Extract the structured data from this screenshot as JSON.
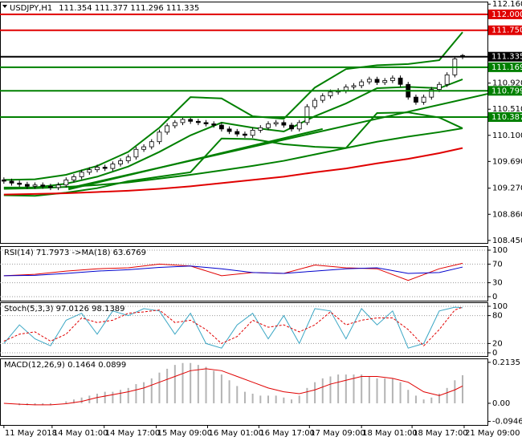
{
  "chart_data": [
    {
      "type": "candlestick",
      "title": "USDJPY,H1",
      "subtitle": "111.354 111.377 111.296 111.335",
      "xlim": [
        -0.5,
        62.2
      ],
      "ylim": [
        108.41,
        112.2
      ],
      "yticks": [
        {
          "value": 112.16,
          "label": "112.160"
        },
        {
          "value": 110.92,
          "label": "110.920"
        },
        {
          "value": 110.51,
          "label": "110.510"
        },
        {
          "value": 110.1,
          "label": "110.100"
        },
        {
          "value": 109.69,
          "label": "109.690"
        },
        {
          "value": 109.27,
          "label": "109.270"
        },
        {
          "value": 108.86,
          "label": "108.860"
        },
        {
          "value": 108.45,
          "label": "108.450"
        }
      ],
      "bull_color": "#ffffff",
      "bear_color": "#000000",
      "candle_color": "#000000",
      "open": [
        109.4,
        109.38,
        109.35,
        109.33,
        109.3,
        109.32,
        109.3,
        109.28,
        109.32,
        109.4,
        109.45,
        109.52,
        109.56,
        109.6,
        109.58,
        109.65,
        109.7,
        109.76,
        109.88,
        109.92,
        110.0,
        110.15,
        110.25,
        110.3,
        110.35,
        110.32,
        110.3,
        110.28,
        110.26,
        110.2,
        110.16,
        110.12,
        110.1,
        110.18,
        110.22,
        110.28,
        110.3,
        110.26,
        110.2,
        110.3,
        110.55,
        110.65,
        110.72,
        110.78,
        110.8,
        110.86,
        110.88,
        110.94,
        110.98,
        110.93,
        110.96,
        111.0,
        110.9,
        110.7,
        110.62,
        110.7,
        110.82,
        110.9,
        111.05,
        111.354
      ],
      "high": [
        109.44,
        109.42,
        109.39,
        109.37,
        109.36,
        109.36,
        109.34,
        109.36,
        109.44,
        109.49,
        109.56,
        109.6,
        109.64,
        109.64,
        109.69,
        109.74,
        109.8,
        109.92,
        109.96,
        110.04,
        110.19,
        110.29,
        110.34,
        110.39,
        110.39,
        110.36,
        110.34,
        110.32,
        110.3,
        110.24,
        110.2,
        110.16,
        110.22,
        110.26,
        110.32,
        110.34,
        110.34,
        110.3,
        110.34,
        110.59,
        110.69,
        110.76,
        110.82,
        110.84,
        110.9,
        110.92,
        110.98,
        111.02,
        111.02,
        111.0,
        111.04,
        111.04,
        110.94,
        110.74,
        110.74,
        110.86,
        110.94,
        111.09,
        111.34,
        111.377
      ],
      "low": [
        109.34,
        109.31,
        109.29,
        109.26,
        109.26,
        109.26,
        109.24,
        109.24,
        109.28,
        109.36,
        109.41,
        109.48,
        109.52,
        109.54,
        109.54,
        109.61,
        109.66,
        109.72,
        109.84,
        109.88,
        109.96,
        110.11,
        110.21,
        110.26,
        110.28,
        110.26,
        110.24,
        110.22,
        110.16,
        110.12,
        110.08,
        110.06,
        110.06,
        110.14,
        110.18,
        110.24,
        110.22,
        110.16,
        110.16,
        110.26,
        110.51,
        110.61,
        110.68,
        110.74,
        110.76,
        110.82,
        110.84,
        110.9,
        110.89,
        110.89,
        110.92,
        110.86,
        110.66,
        110.58,
        110.58,
        110.66,
        110.78,
        110.86,
        111.01,
        111.296
      ],
      "close": [
        109.38,
        109.35,
        109.33,
        109.3,
        109.32,
        109.3,
        109.28,
        109.32,
        109.4,
        109.45,
        109.52,
        109.56,
        109.6,
        109.58,
        109.65,
        109.7,
        109.76,
        109.88,
        109.92,
        110.0,
        110.15,
        110.25,
        110.3,
        110.35,
        110.32,
        110.3,
        110.28,
        110.26,
        110.2,
        110.16,
        110.12,
        110.1,
        110.18,
        110.22,
        110.28,
        110.3,
        110.26,
        110.2,
        110.3,
        110.55,
        110.65,
        110.72,
        110.78,
        110.8,
        110.86,
        110.88,
        110.94,
        110.98,
        110.93,
        110.96,
        111.0,
        110.9,
        110.7,
        110.62,
        110.7,
        110.82,
        110.9,
        111.05,
        111.3,
        111.335
      ],
      "overlay_x": [
        0,
        4,
        8,
        12,
        16,
        20,
        24,
        28,
        32,
        36,
        40,
        44,
        48,
        52,
        56,
        59
      ],
      "overlays": [
        {
          "color": "#008000",
          "values": [
            109.4,
            109.41,
            109.48,
            109.62,
            109.84,
            110.22,
            110.7,
            110.68,
            110.4,
            110.36,
            110.85,
            111.14,
            111.2,
            111.22,
            111.28,
            111.72
          ]
        },
        {
          "color": "#008000",
          "values": [
            109.28,
            109.28,
            109.34,
            109.45,
            109.61,
            109.84,
            110.1,
            110.3,
            110.22,
            110.16,
            110.4,
            110.6,
            110.84,
            110.86,
            110.84,
            110.98
          ]
        },
        {
          "color": "#008000",
          "values": [
            109.16,
            109.15,
            109.2,
            109.27,
            109.38,
            109.45,
            109.52,
            110.05,
            110.04,
            109.96,
            109.92,
            109.9,
            110.45,
            110.46,
            110.38,
            110.21
          ]
        },
        {
          "color": "#008000",
          "values": [
            109.26,
            109.27,
            109.29,
            109.32,
            109.36,
            109.42,
            109.48,
            109.55,
            109.62,
            109.7,
            109.8,
            109.9,
            110.0,
            110.08,
            110.15,
            110.21
          ]
        },
        {
          "color": "#e00000",
          "values": [
            109.17,
            109.18,
            109.19,
            109.21,
            109.23,
            109.26,
            109.3,
            109.35,
            109.4,
            109.45,
            109.52,
            109.58,
            109.66,
            109.73,
            109.82,
            109.9
          ]
        }
      ],
      "trendlines": [
        {
          "color": "#008000",
          "x": [
            8.3,
            62.2
          ],
          "y": [
            109.27,
            110.75
          ]
        },
        {
          "color": "#008000",
          "x": [
            8.3,
            41
          ],
          "y": [
            109.25,
            110.2
          ]
        }
      ],
      "levels": [
        {
          "value": 112.0,
          "label": "112.000",
          "color": "#e00000"
        },
        {
          "value": 111.75,
          "label": "111.750",
          "color": "#e00000"
        },
        {
          "value": 111.335,
          "label": "111.335",
          "color": "#000000"
        },
        {
          "value": 111.169,
          "label": "111.169",
          "color": "#008000"
        },
        {
          "value": 110.799,
          "label": "110.799",
          "color": "#008000"
        },
        {
          "value": 110.387,
          "label": "110.387",
          "color": "#008000"
        }
      ]
    },
    {
      "type": "line",
      "title": "RSI(14) 71.7973 ->MA(18) 63.6769",
      "xlim": [
        -0.5,
        62.2
      ],
      "ylim": [
        -8.6,
        108.6
      ],
      "yticks": [
        100,
        70,
        30,
        0
      ],
      "grid": true,
      "x": [
        0,
        4,
        8,
        12,
        16,
        20,
        24,
        28,
        32,
        36,
        40,
        44,
        48,
        52,
        56,
        59
      ],
      "series": [
        {
          "color": "#e00000",
          "style": "solid",
          "values": [
            45,
            48,
            55,
            60,
            62,
            70,
            66,
            45,
            52,
            50,
            68,
            62,
            60,
            35,
            60,
            71.7973
          ]
        },
        {
          "color": "#0000cc",
          "style": "solid",
          "values": [
            45,
            46,
            50,
            55,
            58,
            63,
            66,
            60,
            52,
            50,
            55,
            60,
            62,
            50,
            52,
            63.6769
          ]
        }
      ]
    },
    {
      "type": "line",
      "title": "Stoch(5,3,3) 97.0126 98.1389",
      "xlim": [
        -0.5,
        62.2
      ],
      "ylim": [
        -6.9,
        108.6
      ],
      "yticks": [
        100,
        80,
        20,
        0
      ],
      "grid": true,
      "x": [
        0,
        2,
        4,
        6,
        8,
        10,
        12,
        14,
        16,
        18,
        20,
        22,
        24,
        26,
        28,
        30,
        32,
        34,
        36,
        38,
        40,
        42,
        44,
        46,
        48,
        50,
        52,
        54,
        56,
        58,
        59
      ],
      "series": [
        {
          "color": "#3aa6c4",
          "style": "solid",
          "values": [
            20,
            60,
            30,
            15,
            70,
            85,
            40,
            90,
            80,
            95,
            90,
            40,
            85,
            20,
            10,
            60,
            85,
            30,
            80,
            20,
            95,
            90,
            30,
            95,
            60,
            90,
            10,
            20,
            90,
            98,
            97.0126
          ]
        },
        {
          "color": "#e00000",
          "style": "dashed",
          "values": [
            25,
            40,
            45,
            25,
            40,
            75,
            65,
            70,
            85,
            88,
            92,
            65,
            70,
            50,
            20,
            35,
            70,
            55,
            60,
            45,
            60,
            88,
            60,
            70,
            75,
            75,
            50,
            15,
            50,
            92,
            98.1389
          ]
        }
      ]
    },
    {
      "type": "macd",
      "title": "MACD(12,26,9) 0.1464 0.0899",
      "xlim": [
        -0.5,
        62.2
      ],
      "ylim": [
        -0.113,
        0.234
      ],
      "yticks": [
        0.2135,
        {
          "value": 0,
          "label": "0.00"
        },
        -0.0946
      ],
      "histogram": {
        "color": "#b4b4b4",
        "values": [
          0.0,
          0.0,
          -0.01,
          -0.01,
          -0.01,
          -0.01,
          -0.01,
          0.0,
          0.01,
          0.02,
          0.03,
          0.04,
          0.05,
          0.06,
          0.06,
          0.07,
          0.08,
          0.1,
          0.11,
          0.13,
          0.16,
          0.18,
          0.2,
          0.21,
          0.21,
          0.2,
          0.19,
          0.17,
          0.15,
          0.12,
          0.09,
          0.06,
          0.05,
          0.04,
          0.04,
          0.04,
          0.03,
          0.02,
          0.04,
          0.08,
          0.11,
          0.13,
          0.14,
          0.15,
          0.15,
          0.15,
          0.15,
          0.14,
          0.13,
          0.13,
          0.13,
          0.11,
          0.07,
          0.04,
          0.02,
          0.03,
          0.05,
          0.08,
          0.12,
          0.1464
        ]
      },
      "x": [
        0,
        2,
        4,
        6,
        8,
        10,
        12,
        14,
        16,
        18,
        20,
        22,
        24,
        26,
        28,
        30,
        32,
        34,
        36,
        38,
        40,
        42,
        44,
        46,
        48,
        50,
        52,
        54,
        56,
        58,
        59
      ],
      "series": [
        {
          "color": "#e00000",
          "style": "solid",
          "values": [
            0.0,
            -0.005,
            -0.008,
            -0.008,
            -0.002,
            0.01,
            0.03,
            0.045,
            0.06,
            0.08,
            0.11,
            0.14,
            0.17,
            0.18,
            0.17,
            0.14,
            0.11,
            0.08,
            0.06,
            0.05,
            0.07,
            0.1,
            0.12,
            0.14,
            0.14,
            0.13,
            0.11,
            0.06,
            0.04,
            0.07,
            0.0899
          ]
        }
      ],
      "xticks": [
        {
          "value": 0,
          "label": "11 May 2018"
        },
        {
          "value": 6.2,
          "label": "14 May 01:00"
        },
        {
          "value": 12.9,
          "label": "14 May 17:00"
        },
        {
          "value": 19.6,
          "label": "15 May 09:00"
        },
        {
          "value": 26.2,
          "label": "16 May 01:00"
        },
        {
          "value": 32.8,
          "label": "16 May 17:00"
        },
        {
          "value": 39.3,
          "label": "17 May 09:00"
        },
        {
          "value": 46,
          "label": "18 May 01:00"
        },
        {
          "value": 52.5,
          "label": "18 May 17:00"
        },
        {
          "value": 59.2,
          "label": "21 May 09:00"
        }
      ]
    }
  ]
}
